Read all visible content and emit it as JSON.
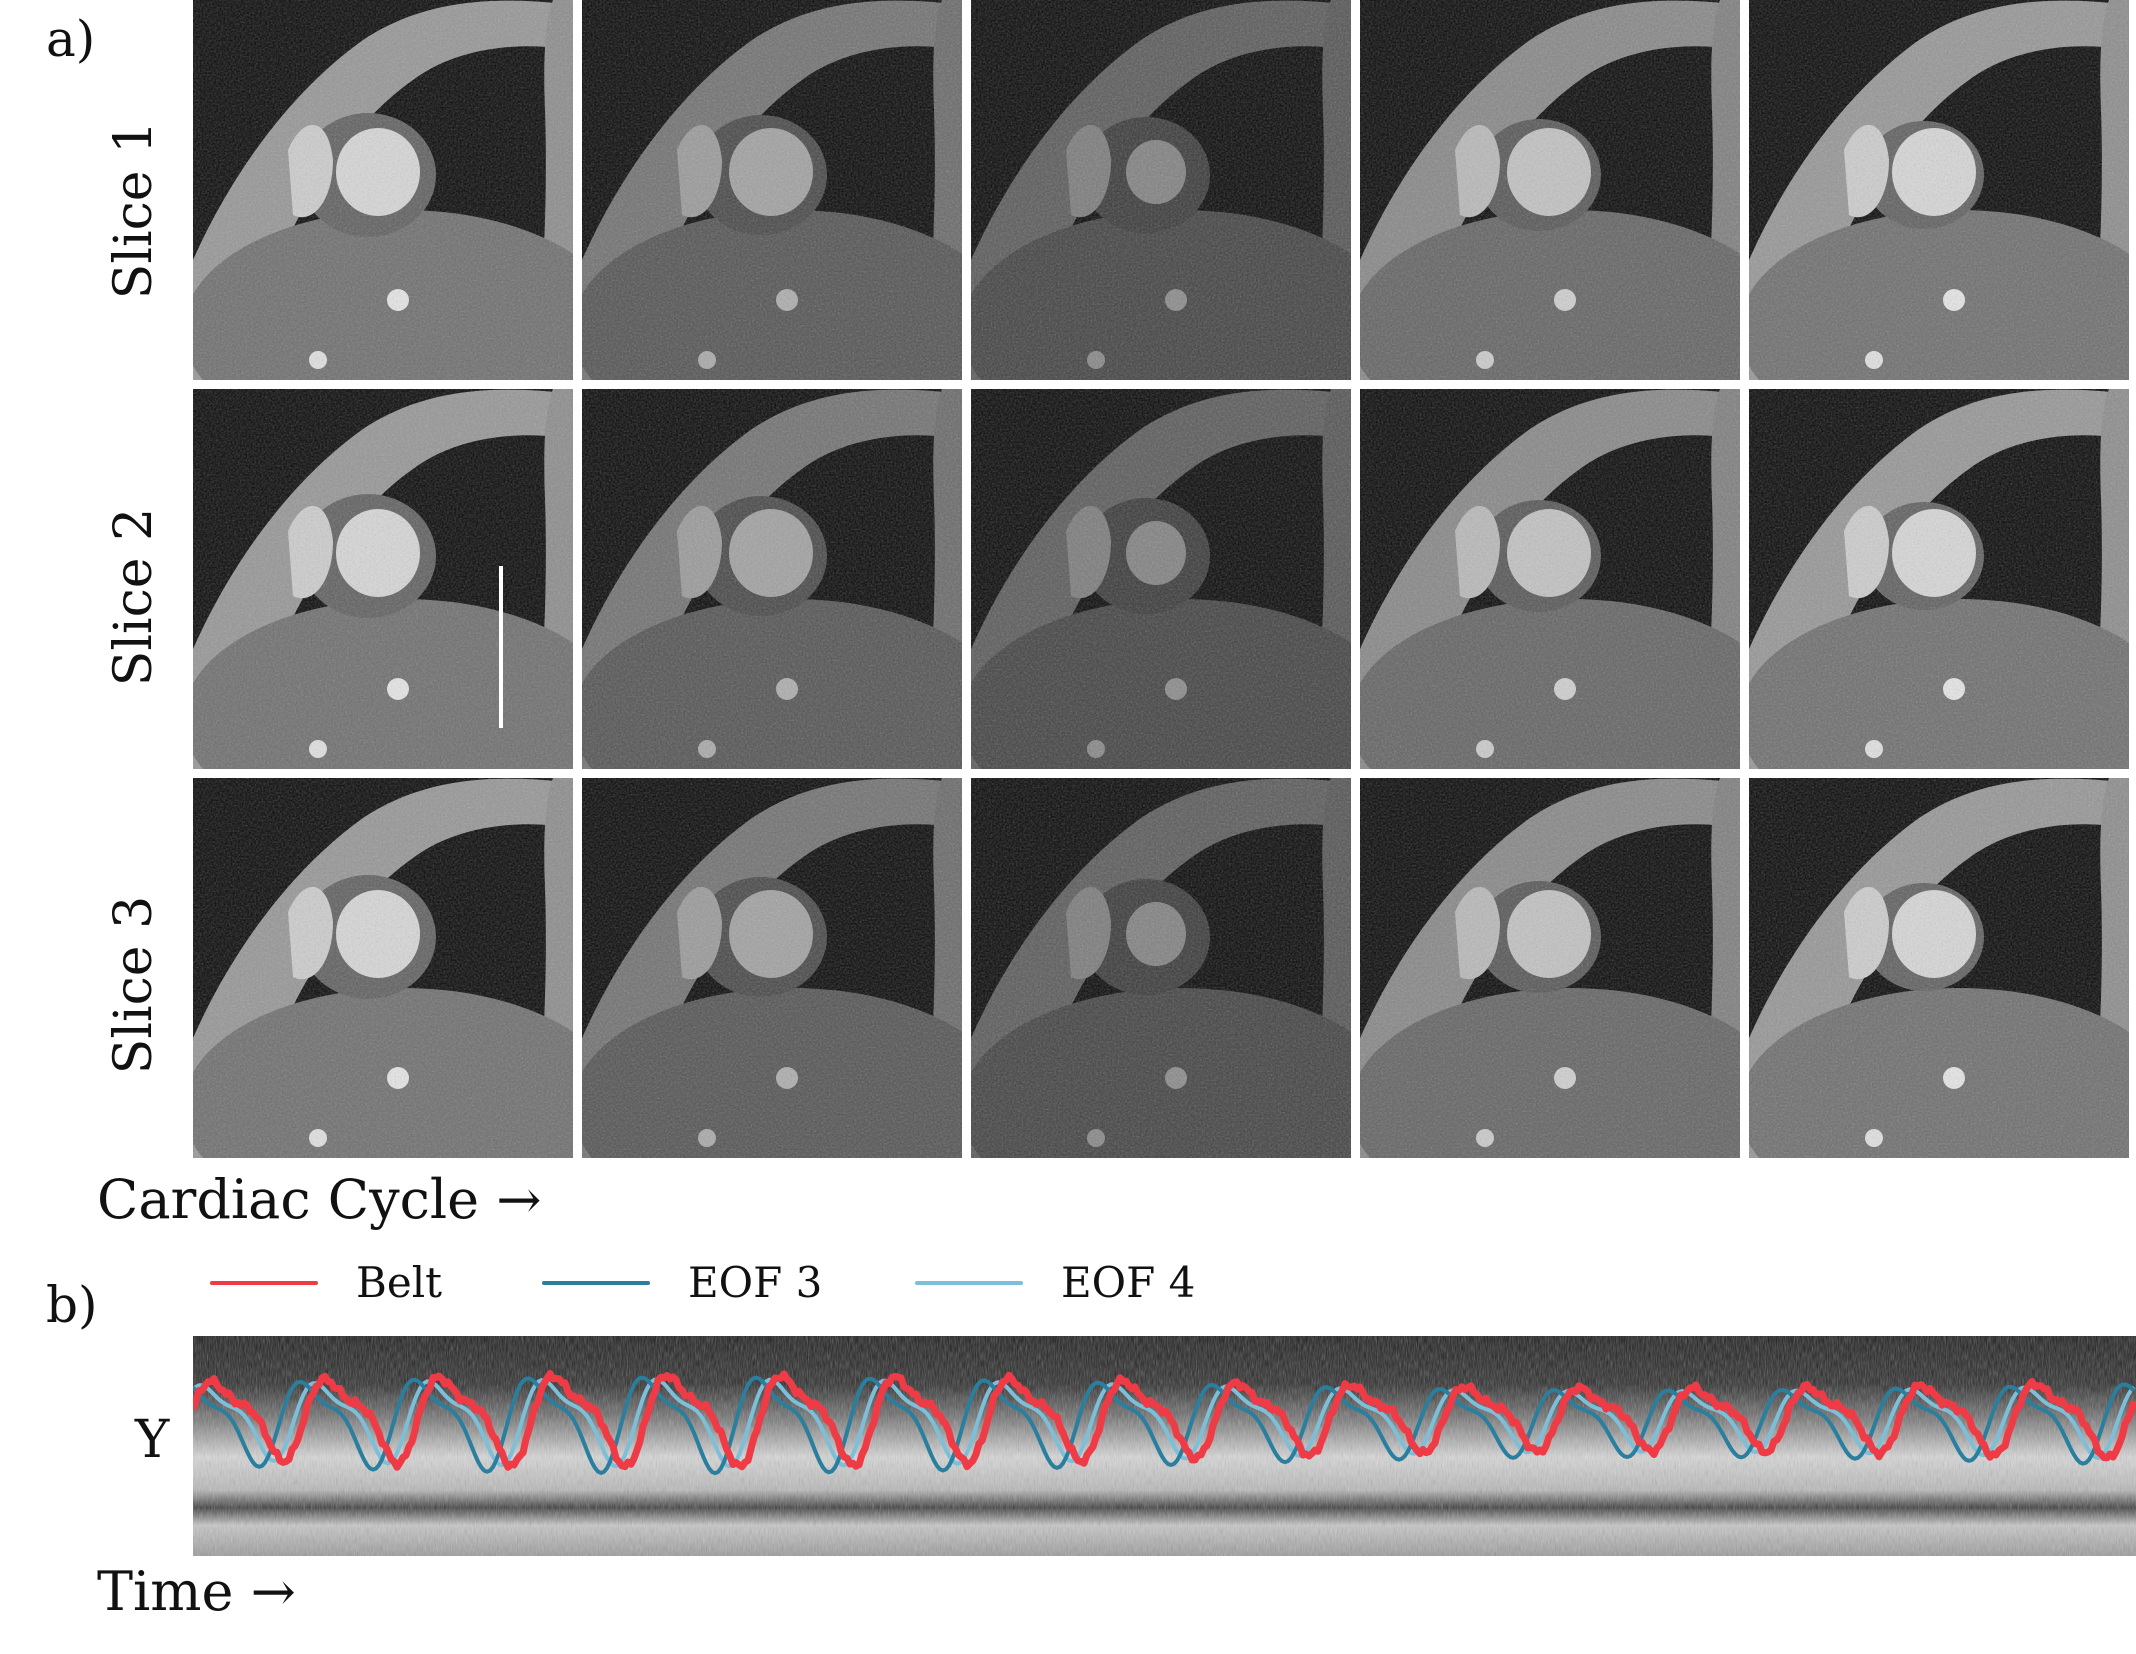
{
  "figure": {
    "panel_a_label": "a)",
    "panel_b_label": "b)",
    "rows": [
      {
        "label": "Slice 1"
      },
      {
        "label": "Slice 2"
      },
      {
        "label": "Slice 3"
      }
    ],
    "frames_per_row": 5,
    "x_caption_a": "Cardiac Cycle →",
    "x_caption_b": "Time →",
    "y_label_b": "Y",
    "legend": [
      {
        "label": "Belt",
        "color": "#ef3b45"
      },
      {
        "label": "EOF 3",
        "color": "#2a7f9e"
      },
      {
        "label": "EOF 4",
        "color": "#7dbfd9"
      }
    ]
  }
}
